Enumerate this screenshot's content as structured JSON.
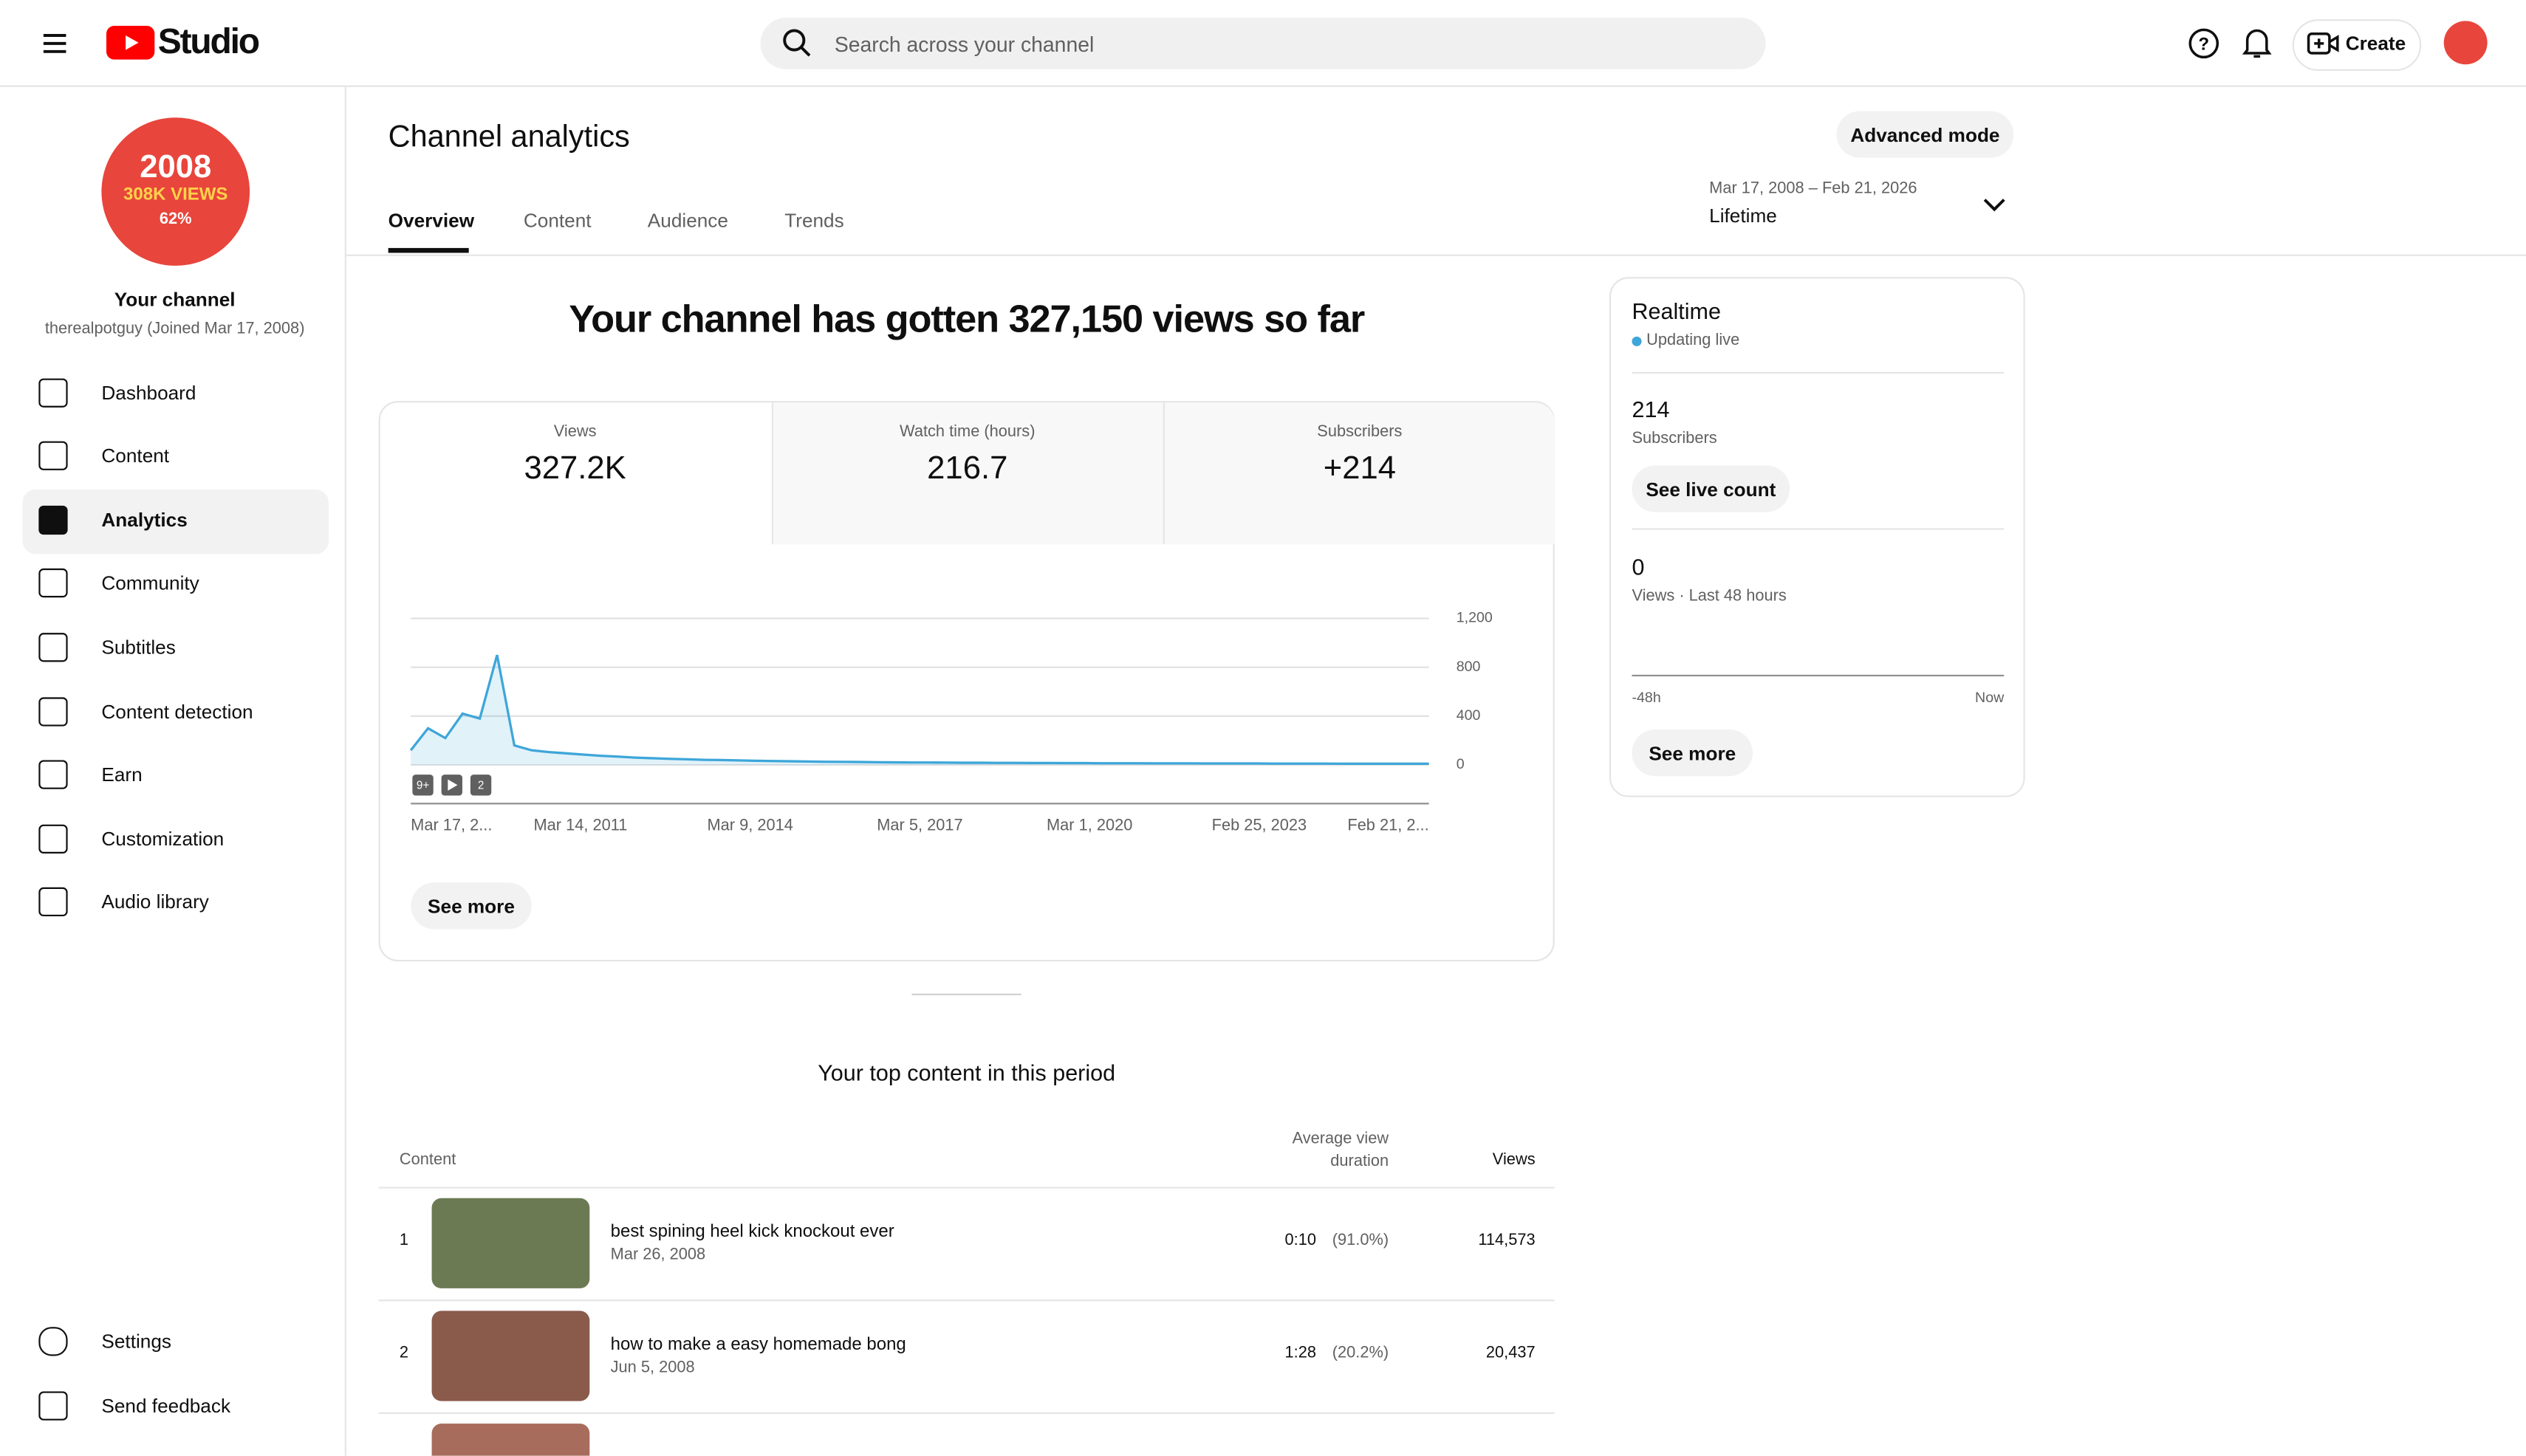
{
  "header": {
    "logo": "Studio",
    "search_placeholder": "Search across your channel",
    "create": "Create"
  },
  "sidebar": {
    "avatar": {
      "year": "2008",
      "views": "308K VIEWS",
      "percent": "62%"
    },
    "channel_title": "Your channel",
    "channel_handle": "therealpotguy (Joined Mar 17, 2008)",
    "nav": [
      "Dashboard",
      "Content",
      "Analytics",
      "Community",
      "Subtitles",
      "Content detection",
      "Earn",
      "Customization",
      "Audio library"
    ],
    "footer_nav": [
      "Settings",
      "Send feedback"
    ]
  },
  "page": {
    "title": "Channel analytics",
    "advanced_mode": "Advanced mode",
    "tabs": [
      "Overview",
      "Content",
      "Audience",
      "Trends"
    ],
    "date_range": "Mar 17, 2008 – Feb 21, 2026",
    "period": "Lifetime",
    "headline": "Your channel has gotten 327,150 views so far"
  },
  "metrics": [
    {
      "label": "Views",
      "value": "327.2K"
    },
    {
      "label": "Watch time (hours)",
      "value": "216.7"
    },
    {
      "label": "Subscribers",
      "value": "+214"
    }
  ],
  "chart_data": {
    "type": "line",
    "color": "#3ea6d9",
    "grid": true,
    "x_tick_labels": [
      "Mar 17, 2...",
      "Mar 14, 2011",
      "Mar 9, 2014",
      "Mar 5, 2017",
      "Mar 1, 2020",
      "Feb 25, 2023",
      "Feb 21, 2..."
    ],
    "values": [
      120,
      300,
      220,
      420,
      380,
      900,
      160,
      120,
      105,
      95,
      85,
      75,
      68,
      60,
      55,
      50,
      46,
      42,
      40,
      37,
      34,
      32,
      30,
      28,
      26,
      25,
      24,
      22,
      21,
      20,
      20,
      19,
      18,
      18,
      17,
      17,
      16,
      16,
      15,
      15,
      14,
      14,
      14,
      13,
      13,
      13,
      12,
      12,
      12,
      12,
      11,
      11,
      11,
      11,
      10,
      10,
      10,
      10,
      10,
      10
    ],
    "ylim": [
      0,
      1200
    ],
    "yticks": [
      0,
      400,
      800,
      {
        "value": 1200,
        "label": "1,200"
      }
    ],
    "badges": [
      "9+",
      "2"
    ],
    "see_more": "See more"
  },
  "realtime": {
    "title": "Realtime",
    "status": "Updating live",
    "subscribers": "214",
    "subscribers_label": "Subscribers",
    "live_button": "See live count",
    "views": "0",
    "views_label": "Views · Last 48 hours",
    "axis_start": "-48h",
    "axis_end": "Now",
    "see_more": "See more"
  },
  "top_content": {
    "title": "Your top content in this period",
    "columns": [
      "Content",
      "Average view duration",
      "Views"
    ],
    "rows": [
      {
        "rank": "1",
        "title": "best spining heel kick knockout ever",
        "date": "Mar 26, 2008",
        "duration": "0:10",
        "percent": "(91.0%)",
        "views": "114,573"
      },
      {
        "rank": "2",
        "title": "how to make a easy homemade bong",
        "date": "Jun 5, 2008",
        "duration": "1:28",
        "percent": "(20.2%)",
        "views": "20,437"
      }
    ]
  }
}
